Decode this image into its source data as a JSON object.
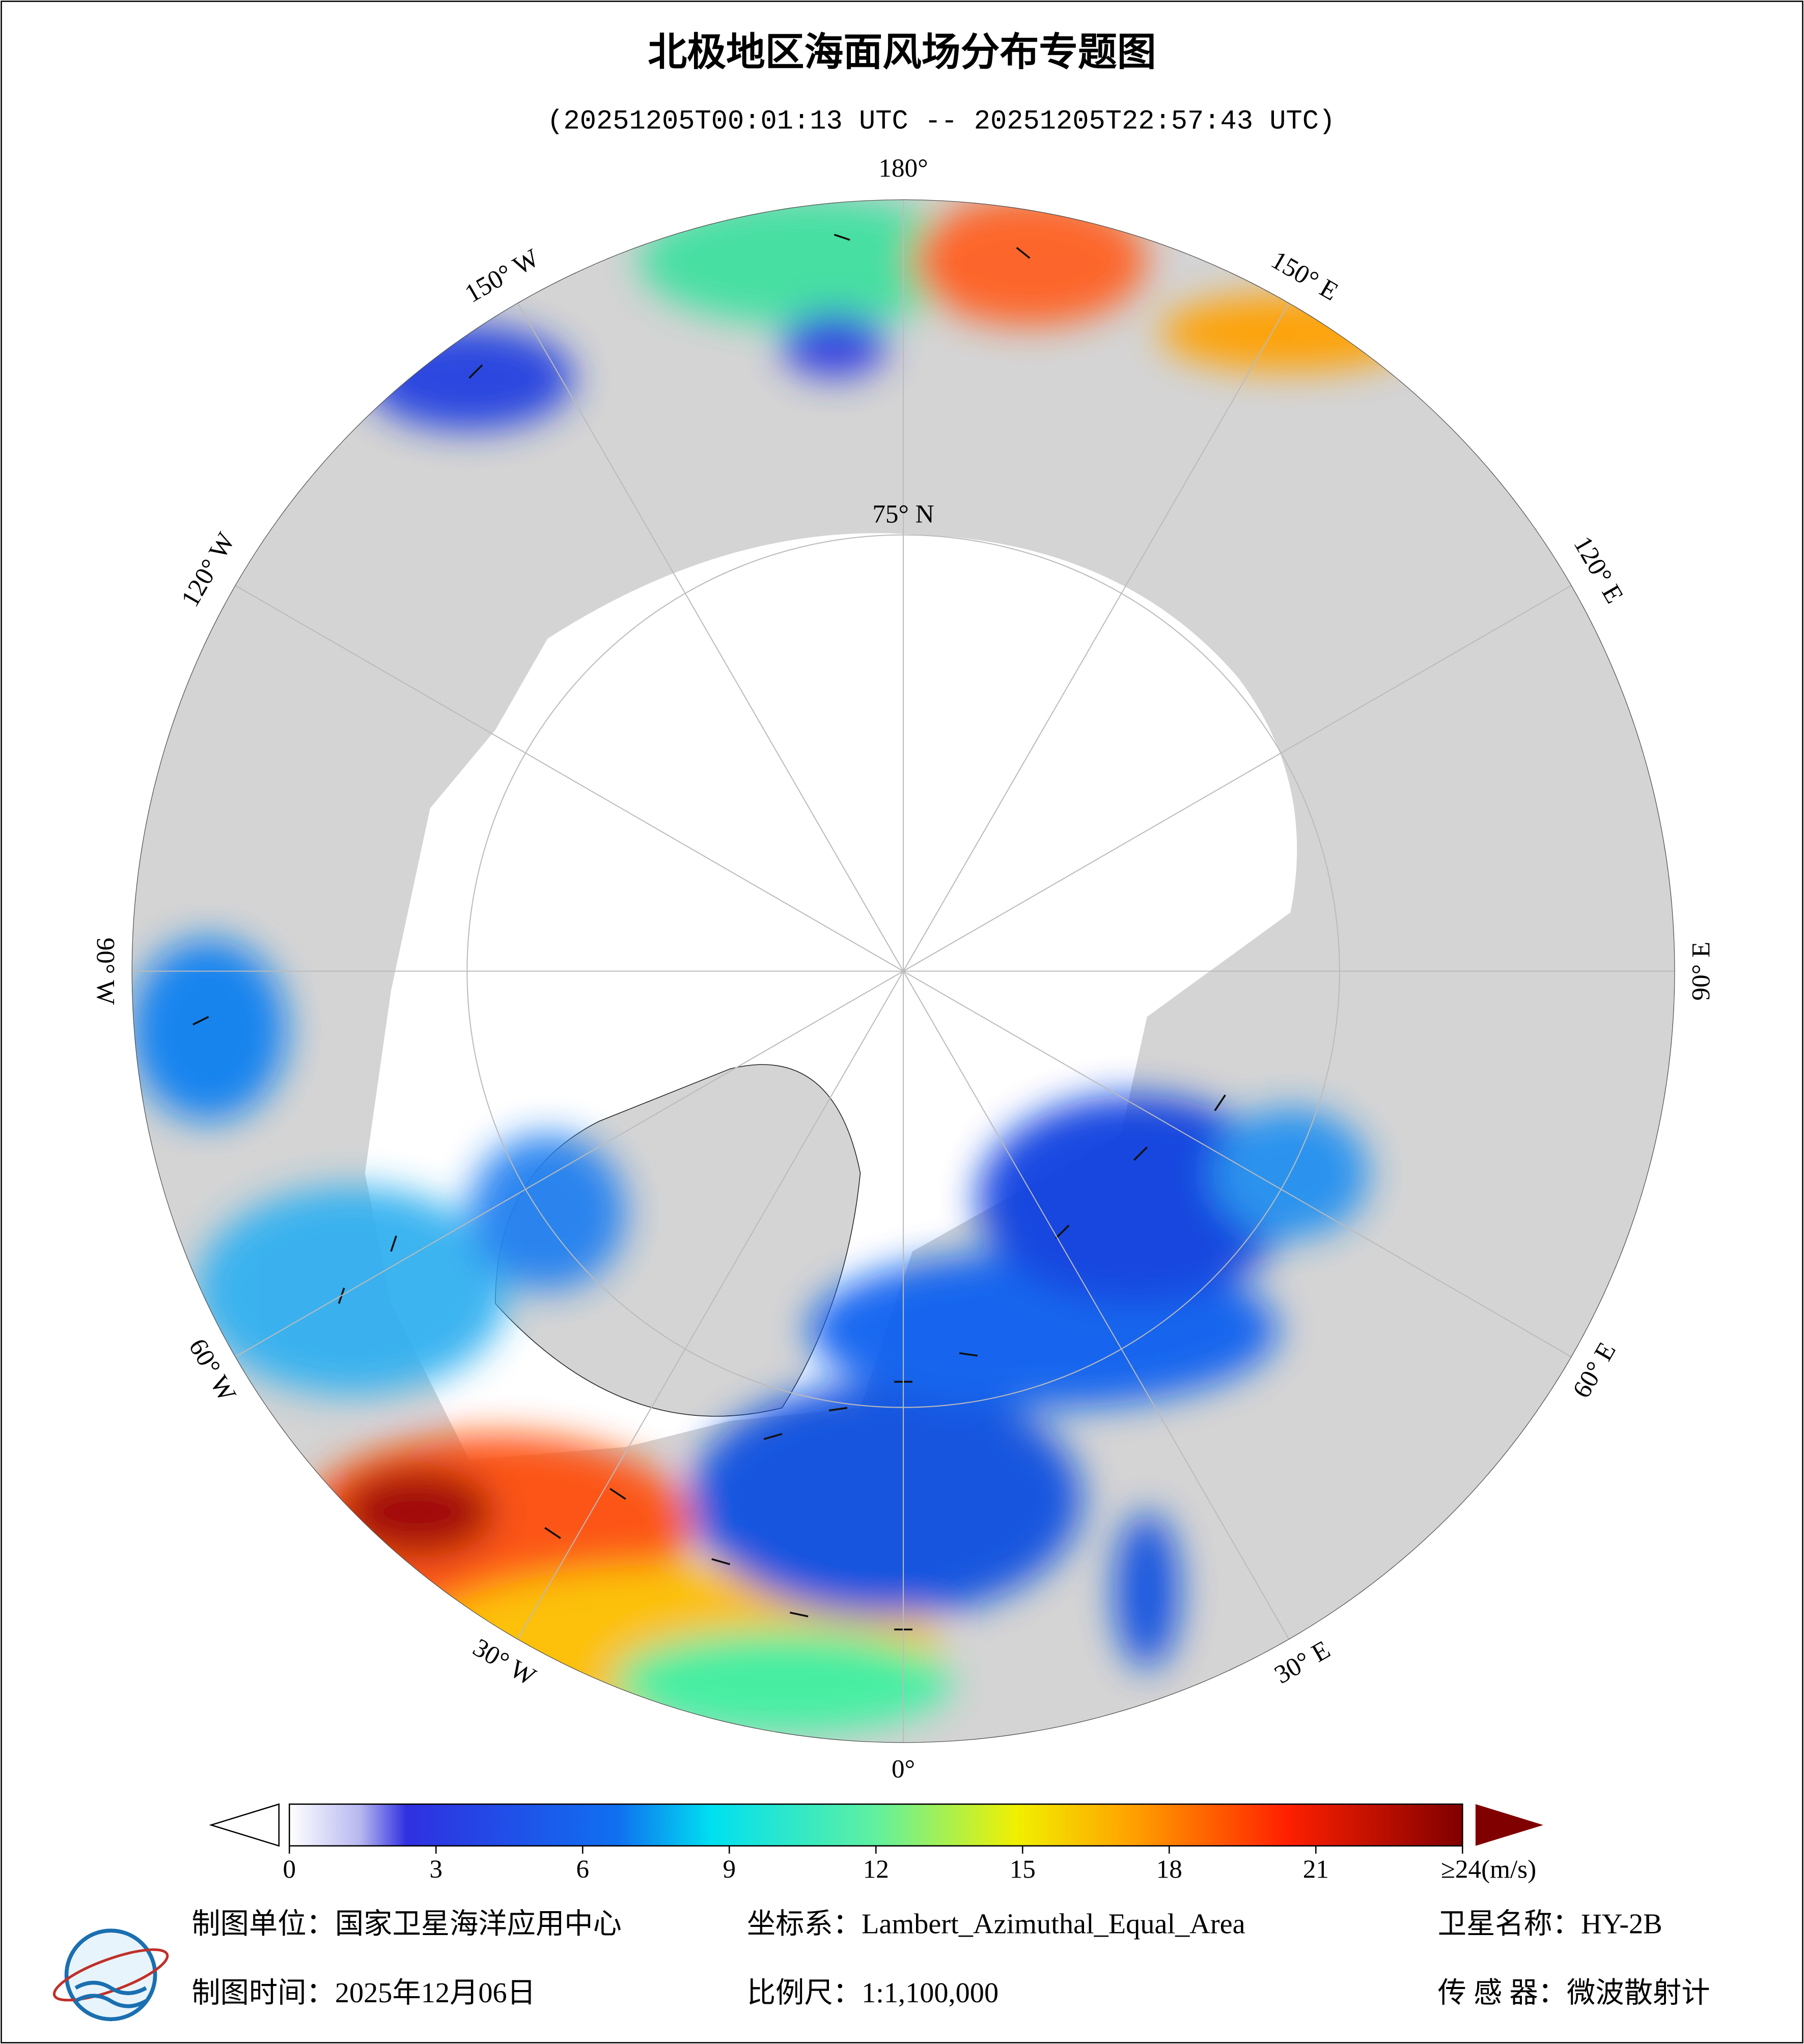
{
  "header": {
    "title": "北极地区海面风场分布专题图",
    "subtitle": "(20251205T00:01:13 UTC -- 20251205T22:57:43 UTC)"
  },
  "map": {
    "lon_ticks": [
      {
        "value": 0,
        "label": "0°"
      },
      {
        "value": 30,
        "label": "30° E"
      },
      {
        "value": 60,
        "label": "60° E"
      },
      {
        "value": 90,
        "label": "90° E"
      },
      {
        "value": 120,
        "label": "120° E"
      },
      {
        "value": 150,
        "label": "150° E"
      },
      {
        "value": 180,
        "label": "180°"
      },
      {
        "value": -150,
        "label": "150° W"
      },
      {
        "value": -120,
        "label": "120° W"
      },
      {
        "value": -90,
        "label": "90° W"
      },
      {
        "value": -60,
        "label": "60° W"
      },
      {
        "value": -30,
        "label": "30° W"
      }
    ],
    "lat_ticks": [
      {
        "value": 75,
        "label": "75° N"
      }
    ]
  },
  "colorbar": {
    "lim": [
      0,
      24
    ],
    "ticks": [
      0,
      3,
      6,
      9,
      12,
      15,
      18,
      21,
      {
        "value": 24,
        "label": "≥24(m/s)"
      }
    ]
  },
  "footer": {
    "maker": "制图单位：国家卫星海洋应用中心",
    "date": "制图时间：2025年12月06日",
    "projection": "坐标系：Lambert_Azimuthal_Equal_Area",
    "scale": "比例尺：1:1,100,000",
    "satellite": "卫星名称：HY-2B",
    "sensor": "传 感 器：微波散射计"
  }
}
